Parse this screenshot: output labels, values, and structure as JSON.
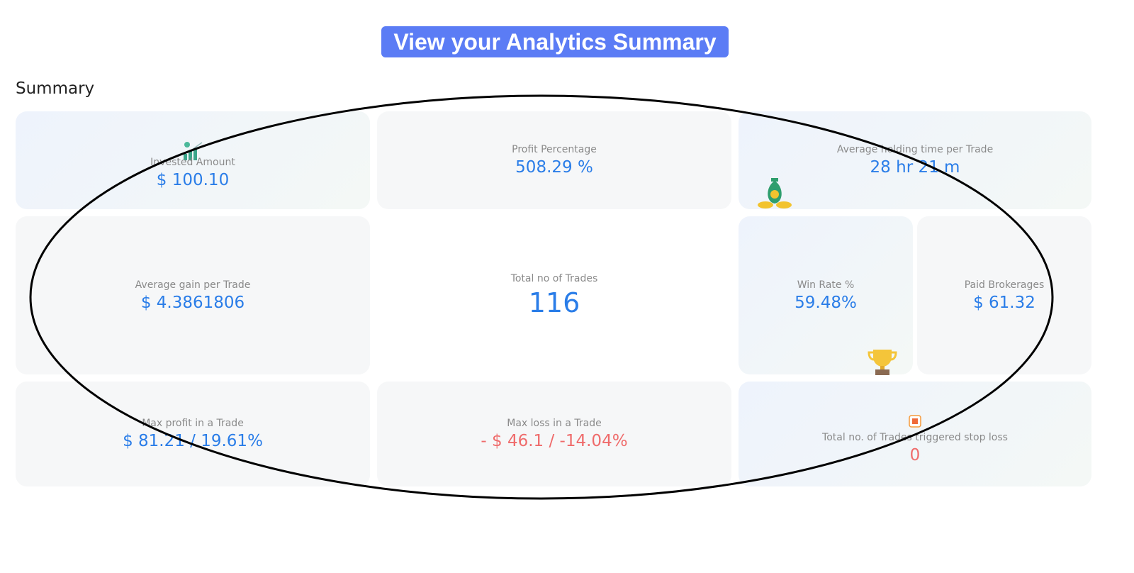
{
  "banner": {
    "title": "View your Analytics Summary"
  },
  "section": {
    "title": "Summary"
  },
  "cards": [
    {
      "label": "Invested Amount",
      "value": "$ 100.10"
    },
    {
      "label": "Profit Percentage",
      "value": "508.29 %"
    },
    {
      "label": "Average holding time per Trade",
      "value": "28 hr 21 m"
    },
    {
      "label": "Average gain per Trade",
      "value": "$ 4.3861806"
    },
    {
      "label": "Total no of Trades",
      "value": "116"
    },
    {
      "label": "Win Rate %",
      "value": "59.48%"
    },
    {
      "label": "Paid Brokerages",
      "value": "$ 61.32"
    },
    {
      "label": "Max profit in a Trade",
      "value": "$ 81.21 / 19.61%"
    },
    {
      "label": "Max loss in a Trade",
      "value": "- $ 46.1 / -14.04%"
    },
    {
      "label": "Total no. of Trades triggered stop loss",
      "value": "0"
    }
  ]
}
